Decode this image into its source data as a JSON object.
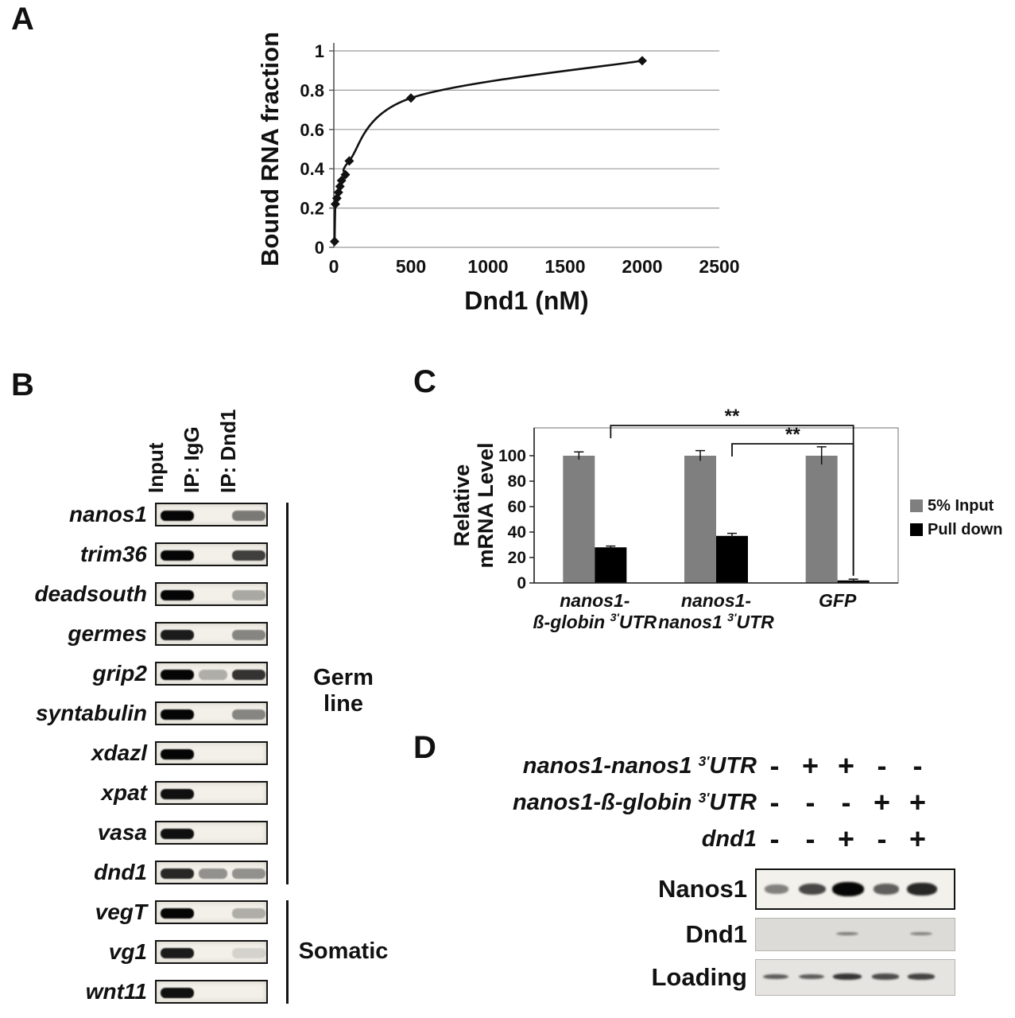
{
  "panel_a": {
    "label": "A",
    "chart_data": {
      "type": "line",
      "xlabel": "Dnd1 (nM)",
      "ylabel": "Bound RNA fraction",
      "xlim": [
        0,
        2500
      ],
      "ylim": [
        0,
        1
      ],
      "xticks": [
        0,
        500,
        1000,
        1500,
        2000,
        2500
      ],
      "yticks": [
        0,
        0.2,
        0.4,
        0.6,
        0.8,
        1
      ],
      "grid": "horizontal",
      "marker": "diamond",
      "line_color": "#111111",
      "grid_color": "#9b9b9b",
      "x": [
        5,
        10,
        20,
        30,
        40,
        50,
        75,
        100,
        500,
        2000
      ],
      "y": [
        0.03,
        0.22,
        0.25,
        0.28,
        0.31,
        0.34,
        0.37,
        0.44,
        0.76,
        0.95
      ]
    }
  },
  "panel_b": {
    "label": "B",
    "lane_headers": [
      "Input",
      "IP: IgG",
      "IP: Dnd1"
    ],
    "groups": [
      {
        "name": "Germ line",
        "rows": [
          0,
          9
        ]
      },
      {
        "name": "Somatic",
        "rows": [
          10,
          12
        ]
      }
    ],
    "rows": [
      {
        "gene": "nanos1",
        "bands": [
          1.0,
          0.0,
          0.5
        ]
      },
      {
        "gene": "trim36",
        "bands": [
          1.0,
          0.0,
          0.75
        ]
      },
      {
        "gene": "deadsouth",
        "bands": [
          1.0,
          0.0,
          0.3
        ]
      },
      {
        "gene": "germes",
        "bands": [
          0.9,
          0.0,
          0.45
        ]
      },
      {
        "gene": "grip2",
        "bands": [
          1.0,
          0.28,
          0.8
        ]
      },
      {
        "gene": "syntabulin",
        "bands": [
          1.0,
          0.0,
          0.45
        ]
      },
      {
        "gene": "xdazl",
        "bands": [
          1.0,
          0.0,
          0.0
        ]
      },
      {
        "gene": "xpat",
        "bands": [
          0.95,
          0.0,
          0.0
        ]
      },
      {
        "gene": "vasa",
        "bands": [
          0.95,
          0.0,
          0.0
        ]
      },
      {
        "gene": "dnd1",
        "bands": [
          0.85,
          0.4,
          0.4
        ]
      },
      {
        "gene": "vegT",
        "bands": [
          1.0,
          0.0,
          0.28
        ]
      },
      {
        "gene": "vg1",
        "bands": [
          0.9,
          0.0,
          0.12
        ]
      },
      {
        "gene": "wnt11",
        "bands": [
          0.95,
          0.0,
          0.0
        ]
      }
    ]
  },
  "panel_c": {
    "label": "C",
    "chart_data": {
      "type": "bar",
      "ylabel_lines": [
        "Relative",
        "mRNA Level"
      ],
      "ylim": [
        0,
        100
      ],
      "yticks": [
        0,
        20,
        40,
        60,
        80,
        100
      ],
      "legend_position": "right",
      "categories": [
        {
          "line1": "nanos1-",
          "line2": [
            {
              "t": "ß-globin ",
              "i": true
            },
            {
              "t": "3'",
              "sup": true,
              "i": true
            },
            {
              "t": "UTR",
              "i": true
            }
          ]
        },
        {
          "line1": "nanos1-",
          "line2": [
            {
              "t": "nanos1 ",
              "i": true
            },
            {
              "t": "3'",
              "sup": true,
              "i": true
            },
            {
              "t": "UTR",
              "i": true
            }
          ]
        },
        {
          "line1": "GFP",
          "line2": []
        }
      ],
      "series": [
        {
          "name": "5% Input",
          "color": "#7f7f7f",
          "values": [
            100,
            100,
            100
          ],
          "errors": [
            3,
            4,
            7
          ]
        },
        {
          "name": "Pull down",
          "color": "#000000",
          "values": [
            28,
            37,
            2
          ],
          "errors": [
            1,
            2,
            1
          ]
        }
      ],
      "significance": [
        {
          "label": "**",
          "from": 0,
          "to": 2
        },
        {
          "label": "**",
          "from": 1,
          "to": 2
        }
      ]
    }
  },
  "panel_d": {
    "label": "D",
    "conditions": [
      {
        "label": [
          {
            "t": "nanos1-nanos1 ",
            "i": true
          },
          {
            "t": "3'",
            "sup": true
          },
          {
            "t": "UTR",
            "i": true
          }
        ],
        "signs": [
          "-",
          "+",
          "+",
          "-",
          "-"
        ]
      },
      {
        "label": [
          {
            "t": "nanos1-ß-globin ",
            "i": true
          },
          {
            "t": "3'",
            "sup": true
          },
          {
            "t": "UTR",
            "i": true
          }
        ],
        "signs": [
          "-",
          "-",
          "-",
          "+",
          "+"
        ]
      },
      {
        "label": [
          {
            "t": "dnd1",
            "i": true
          }
        ],
        "signs": [
          "-",
          "-",
          "+",
          "-",
          "+"
        ]
      }
    ],
    "blots": [
      {
        "label": "Nanos1",
        "bands": [
          0.25,
          0.6,
          1.0,
          0.45,
          0.8
        ],
        "bg": "#f3f1ec",
        "border": "#111111",
        "height": 52,
        "band_height": 18
      },
      {
        "label": "Dnd1",
        "bands": [
          0,
          0,
          0.2,
          0,
          0.16
        ],
        "bg": "#dcdbd7",
        "border": "#b5b3ae",
        "height": 42,
        "band_height": 7
      },
      {
        "label": "Loading",
        "bands": [
          0.45,
          0.45,
          0.7,
          0.55,
          0.6
        ],
        "bg": "#e6e4e0",
        "border": "#b5b3ae",
        "height": 46,
        "band_height": 9
      }
    ]
  }
}
